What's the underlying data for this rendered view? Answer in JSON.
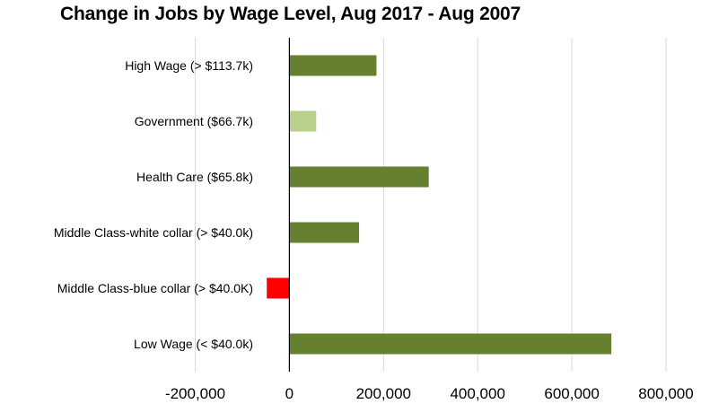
{
  "chart_data": {
    "type": "bar",
    "orientation": "horizontal",
    "title": "Change in Jobs by Wage Level, Aug 2017 - Aug 2007",
    "categories": [
      "High Wage (> $113.7k)",
      "Government ($66.7k)",
      "Health Care ($65.8k)",
      "Middle Class-white collar (> $40.0k)",
      "Middle Class-blue collar (> $40.0K)",
      "Low Wage (< $40.0k)"
    ],
    "values": [
      185000,
      57000,
      296000,
      148000,
      -48000,
      684000
    ],
    "bar_colors": [
      "#65802e",
      "#b8d08c",
      "#65802e",
      "#65802e",
      "#ff0000",
      "#65802e"
    ],
    "xlim": [
      -200000,
      800000
    ],
    "x_ticks": [
      -200000,
      0,
      200000,
      400000,
      600000,
      800000
    ],
    "x_tick_labels": [
      "-200,000",
      "0",
      "200,000",
      "400,000",
      "600,000",
      "800,000"
    ],
    "grid": "vertical",
    "legend": "none",
    "xlabel": "",
    "ylabel": ""
  },
  "colors": {
    "gridline": "#d9d9d9",
    "zero_axis": "#000000",
    "text": "#000000"
  }
}
